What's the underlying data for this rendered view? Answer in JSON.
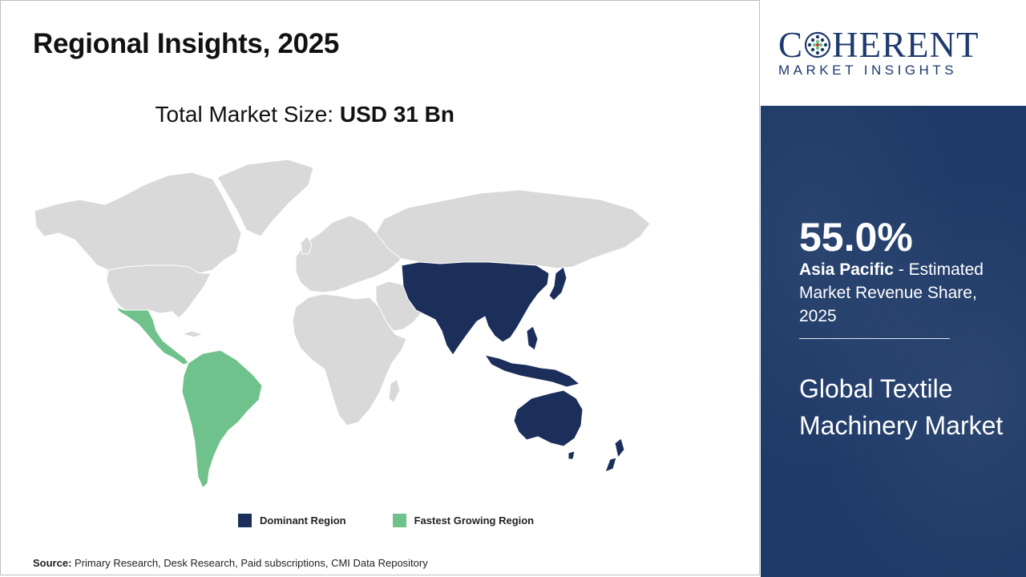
{
  "header": {
    "title": "Regional Insights, 2025"
  },
  "market_size": {
    "label": "Total Market Size: ",
    "value": "USD 31 Bn"
  },
  "map": {
    "region_colors": {
      "other": "#d9d9d9",
      "dominant": "#1b2f5a",
      "fastest": "#6fc28b",
      "border": "#ffffff"
    }
  },
  "legend": {
    "dominant": {
      "label": "Dominant Region",
      "color": "#1b2f5a"
    },
    "fastest": {
      "label": "Fastest Growing Region",
      "color": "#6fc28b"
    }
  },
  "source": {
    "label": "Source:",
    "text": " Primary Research, Desk Research, Paid subscriptions, CMI Data Repository"
  },
  "logo": {
    "main_pre": "C",
    "main_post": "HERENT",
    "sub": "MARKET INSIGHTS"
  },
  "panel": {
    "percent": "55.0%",
    "region": "Asia Pacific",
    "desc": " - Estimated Market Revenue Share, 2025",
    "market_name": "Global Textile Machinery Market",
    "bg_color": "#1f3a68"
  }
}
